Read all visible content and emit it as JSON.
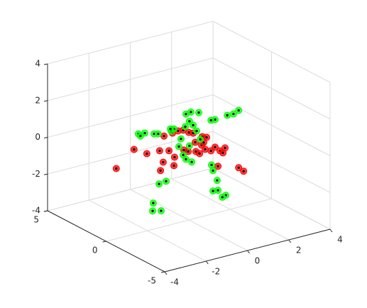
{
  "chart_data": {
    "type": "scatter3d",
    "xlim": [
      -4,
      4
    ],
    "ylim": [
      -5,
      5
    ],
    "zlim": [
      -4,
      4
    ],
    "xticks": [
      -4,
      -2,
      0,
      2,
      4
    ],
    "yticks": [
      -5,
      0,
      5
    ],
    "zticks": [
      -4,
      -2,
      0,
      2,
      4
    ],
    "grid": true,
    "series": [
      {
        "color": "#ff0000",
        "x": [
          -3.51,
          -2.65,
          -2.03,
          -1.41,
          -1.2,
          -0.79,
          -0.52,
          -0.27,
          0,
          0.21,
          0.65,
          0.86,
          0.31,
          0.62,
          0.79,
          1.07,
          1.27,
          1.51,
          1.65,
          1.75,
          0.34,
          -0.03,
          -0.24,
          -0.96,
          -0.69,
          -1.24,
          -1.37,
          -0.72,
          0.52,
          1.41,
          2.41,
          2.65,
          0.72
        ],
        "y": [
          0,
          0,
          0,
          0,
          0,
          0,
          0,
          0,
          0,
          0,
          0,
          0,
          0,
          0,
          0,
          0,
          0,
          0,
          0,
          0,
          0,
          0,
          0,
          0,
          0,
          0,
          0,
          0,
          0,
          0,
          0,
          0,
          0
        ],
        "z": [
          -0.18,
          0.61,
          0.2,
          0.18,
          0.92,
          0.96,
          1.0,
          0.97,
          0.77,
          0.67,
          0.35,
          0.25,
          0.14,
          -0.1,
          -0.38,
          -0.54,
          -0.4,
          -0.67,
          -0.82,
          -0.58,
          -0.37,
          -0.26,
          -0.12,
          0.05,
          -0.38,
          -0.49,
          -0.91,
          -0.83,
          -0.53,
          -1.48,
          -1.85,
          -2.11,
          0.02
        ]
      },
      {
        "color": "#00ff00",
        "x": [
          2.41,
          1.86,
          2.16,
          1.27,
          1.07,
          0.48,
          0.1,
          -0.14,
          0.03,
          -0.17,
          -0.72,
          -0.86,
          -2.13,
          -2.44,
          -1.68,
          -1.48,
          -2.34,
          -0.38,
          -0.48,
          0.03,
          -0.27,
          -0.14,
          0.14,
          1.1,
          1.17,
          1.37,
          1.41,
          1.17,
          1.79,
          1.62,
          -1.1,
          -1.44,
          -1.72,
          -1.75,
          -1.34,
          0.55,
          0.38,
          0.21,
          -0.89
        ],
        "y": [
          0,
          0,
          0,
          0,
          0,
          0,
          0,
          0,
          0,
          0,
          0,
          0,
          0,
          0,
          0,
          0,
          0,
          0,
          0,
          0,
          0,
          0,
          0,
          0,
          0,
          0,
          0,
          0,
          0,
          0,
          0,
          0,
          0,
          0,
          0,
          0,
          0,
          0,
          0
        ],
        "z": [
          1.27,
          1.16,
          1.15,
          1.1,
          1.12,
          1.71,
          1.85,
          1.81,
          1.37,
          1.13,
          1.17,
          1.09,
          1.35,
          1.4,
          1.18,
          1.12,
          1.25,
          0.53,
          0.14,
          0.03,
          -0.38,
          -0.65,
          -0.88,
          -1.32,
          -1.65,
          -2.24,
          -2.79,
          -2.76,
          -3.17,
          -3.23,
          -1.57,
          -1.62,
          -2.58,
          -3.0,
          -3.11,
          0.23,
          0.74,
          1.1,
          1.22
        ]
      }
    ]
  }
}
